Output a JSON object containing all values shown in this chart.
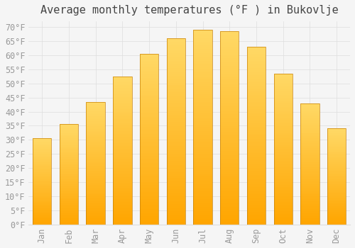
{
  "title": "Average monthly temperatures (°F ) in Bukovlje",
  "months": [
    "Jan",
    "Feb",
    "Mar",
    "Apr",
    "May",
    "Jun",
    "Jul",
    "Aug",
    "Sep",
    "Oct",
    "Nov",
    "Dec"
  ],
  "values": [
    30.5,
    35.5,
    43.5,
    52.5,
    60.5,
    66.0,
    69.0,
    68.5,
    63.0,
    53.5,
    43.0,
    34.0
  ],
  "bar_color_top": "#FFD966",
  "bar_color_bottom": "#FFA500",
  "bar_edge_color": "#C8820A",
  "background_color": "#F5F5F5",
  "grid_color": "#DDDDDD",
  "text_color": "#999999",
  "title_color": "#444444",
  "ylim": [
    0,
    72
  ],
  "yticks": [
    0,
    5,
    10,
    15,
    20,
    25,
    30,
    35,
    40,
    45,
    50,
    55,
    60,
    65,
    70
  ],
  "title_fontsize": 11,
  "tick_fontsize": 8.5,
  "title_font_family": "monospace",
  "bar_width": 0.7
}
